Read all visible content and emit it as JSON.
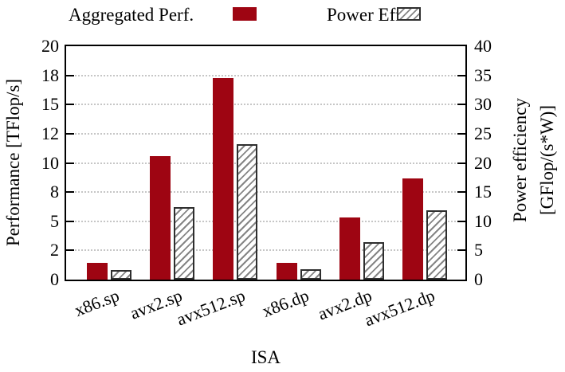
{
  "legend": {
    "items": [
      {
        "label": "Aggregated Perf.",
        "swatch": "solid-red-square"
      },
      {
        "label": "Power Eff.",
        "swatch": "hatched-square"
      }
    ]
  },
  "axes": {
    "left": {
      "title": "Performance [TFlop/s]"
    },
    "right": {
      "title_line1": "Power efficiency",
      "title_line2": "[GFlop/(s*W)]"
    },
    "x": {
      "title": "ISA"
    }
  },
  "colors": {
    "bar_red": "#9e0512",
    "hatch_line": "#858585",
    "hatch_border": "#2e2e2e",
    "grid": "#c6c6c6",
    "axis": "#000000"
  },
  "chart_data": {
    "type": "bar",
    "title": "",
    "categories": [
      "x86.sp",
      "avx2.sp",
      "avx512.sp",
      "x86.dp",
      "avx2.dp",
      "avx512.dp"
    ],
    "series": [
      {
        "name": "Aggregated Perf.",
        "yaxis": "left",
        "unit": "TFlop/s",
        "values": [
          1.4,
          10.6,
          17.3,
          1.4,
          5.3,
          8.7
        ]
      },
      {
        "name": "Power Eff.",
        "yaxis": "right",
        "unit": "GFlop/(s*W)",
        "values": [
          1.7,
          12.4,
          23.2,
          1.8,
          6.4,
          11.9
        ]
      }
    ],
    "xlabel": "ISA",
    "ylabel_left": "Performance [TFlop/s]",
    "ylabel_right": "Power efficiency [GFlop/(s*W)]",
    "ylim_left": [
      0,
      20
    ],
    "ylim_right": [
      0,
      40
    ],
    "ytick_positions_left": [
      0,
      2.5,
      5,
      7.5,
      10,
      12.5,
      15,
      17.5,
      20
    ],
    "ytick_labels_left": [
      "0",
      "2",
      "5",
      "8",
      "10",
      "12",
      "15",
      "18",
      "20"
    ],
    "ytick_positions_right": [
      0,
      5,
      10,
      15,
      20,
      25,
      30,
      35,
      40
    ],
    "ytick_labels_right": [
      "0",
      "5",
      "10",
      "15",
      "20",
      "25",
      "30",
      "35",
      "40"
    ],
    "grid": "horizontal-dotted",
    "legend_position": "top"
  }
}
